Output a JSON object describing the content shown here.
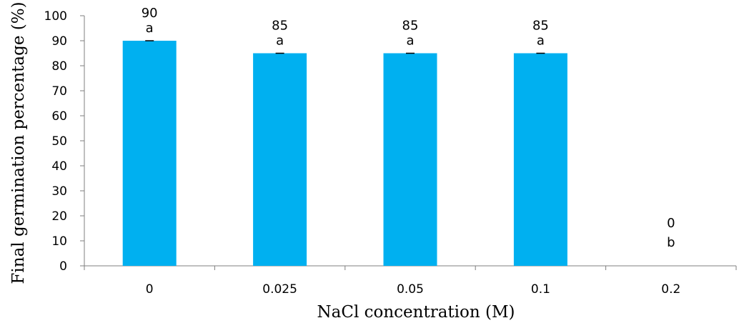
{
  "chart_data": {
    "type": "bar",
    "title": "",
    "xlabel": "NaCl concentration (M)",
    "ylabel": "Final germination percentage (%)",
    "categories": [
      "0",
      "0.025",
      "0.05",
      "0.1",
      "0.2"
    ],
    "values": [
      90,
      85,
      85,
      85,
      0
    ],
    "value_labels": [
      "90",
      "85",
      "85",
      "85",
      "0"
    ],
    "significance_letters": [
      "a",
      "a",
      "a",
      "a",
      "b"
    ],
    "error_bars": [
      0,
      0,
      0,
      0,
      0
    ],
    "ylim": [
      0,
      100
    ],
    "y_ticks": [
      "0",
      "10",
      "20",
      "30",
      "40",
      "50",
      "60",
      "70",
      "80",
      "90",
      "100"
    ],
    "grid": false,
    "legend": "none",
    "bar_color": "#00B0F0"
  }
}
